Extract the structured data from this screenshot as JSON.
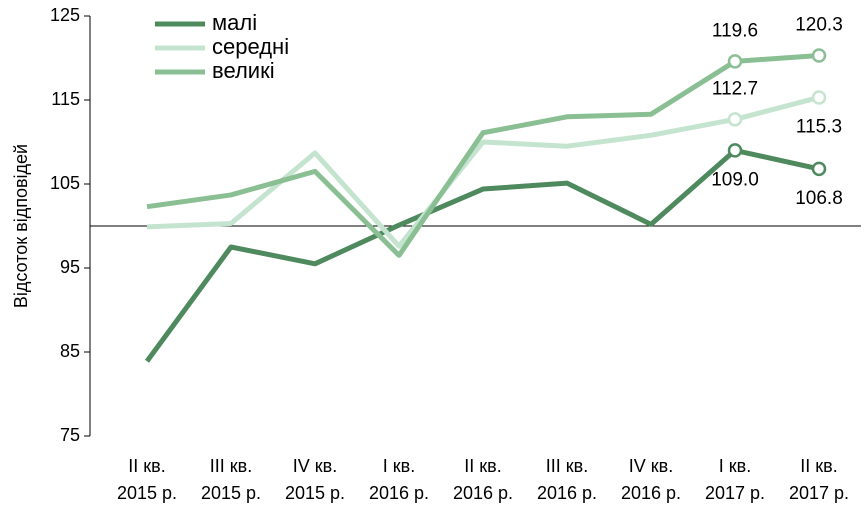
{
  "chart_data": {
    "type": "line",
    "y_label": "Відсоток відповідей",
    "categories": [
      [
        "II кв.",
        "2015 р."
      ],
      [
        "III кв.",
        "2015 р."
      ],
      [
        "IV кв.",
        "2015 р."
      ],
      [
        "I кв.",
        "2016 р."
      ],
      [
        "II кв.",
        "2016 р."
      ],
      [
        "III кв.",
        "2016 р."
      ],
      [
        "IV кв.",
        "2016 р."
      ],
      [
        "I кв.",
        "2017 р."
      ],
      [
        "II кв.",
        "2017 р."
      ]
    ],
    "series": [
      {
        "name": "малі",
        "color": "#4e8a5e",
        "values": [
          83.9,
          97.5,
          95.5,
          100.1,
          104.4,
          105.1,
          100.2,
          109.0,
          106.8
        ],
        "value_labels": [
          null,
          null,
          null,
          null,
          null,
          null,
          null,
          "109.0",
          "106.8"
        ]
      },
      {
        "name": "середні",
        "color": "#c4e4d0",
        "values": [
          99.9,
          100.3,
          108.7,
          97.6,
          110.0,
          109.5,
          110.8,
          112.7,
          115.3
        ],
        "value_labels": [
          null,
          null,
          null,
          null,
          null,
          null,
          null,
          "112.7",
          "115.3"
        ]
      },
      {
        "name": "великі",
        "color": "#8abf94",
        "values": [
          102.3,
          103.7,
          106.5,
          96.5,
          111.1,
          113.0,
          113.3,
          119.6,
          120.3
        ],
        "value_labels": [
          null,
          null,
          null,
          null,
          null,
          null,
          null,
          "119.6",
          "120.3"
        ]
      }
    ],
    "ylim": [
      75,
      125
    ],
    "yticks": [
      75,
      85,
      95,
      105,
      115,
      125
    ],
    "x_axis_crosses": 100,
    "grid": false,
    "legend": "top-left"
  }
}
